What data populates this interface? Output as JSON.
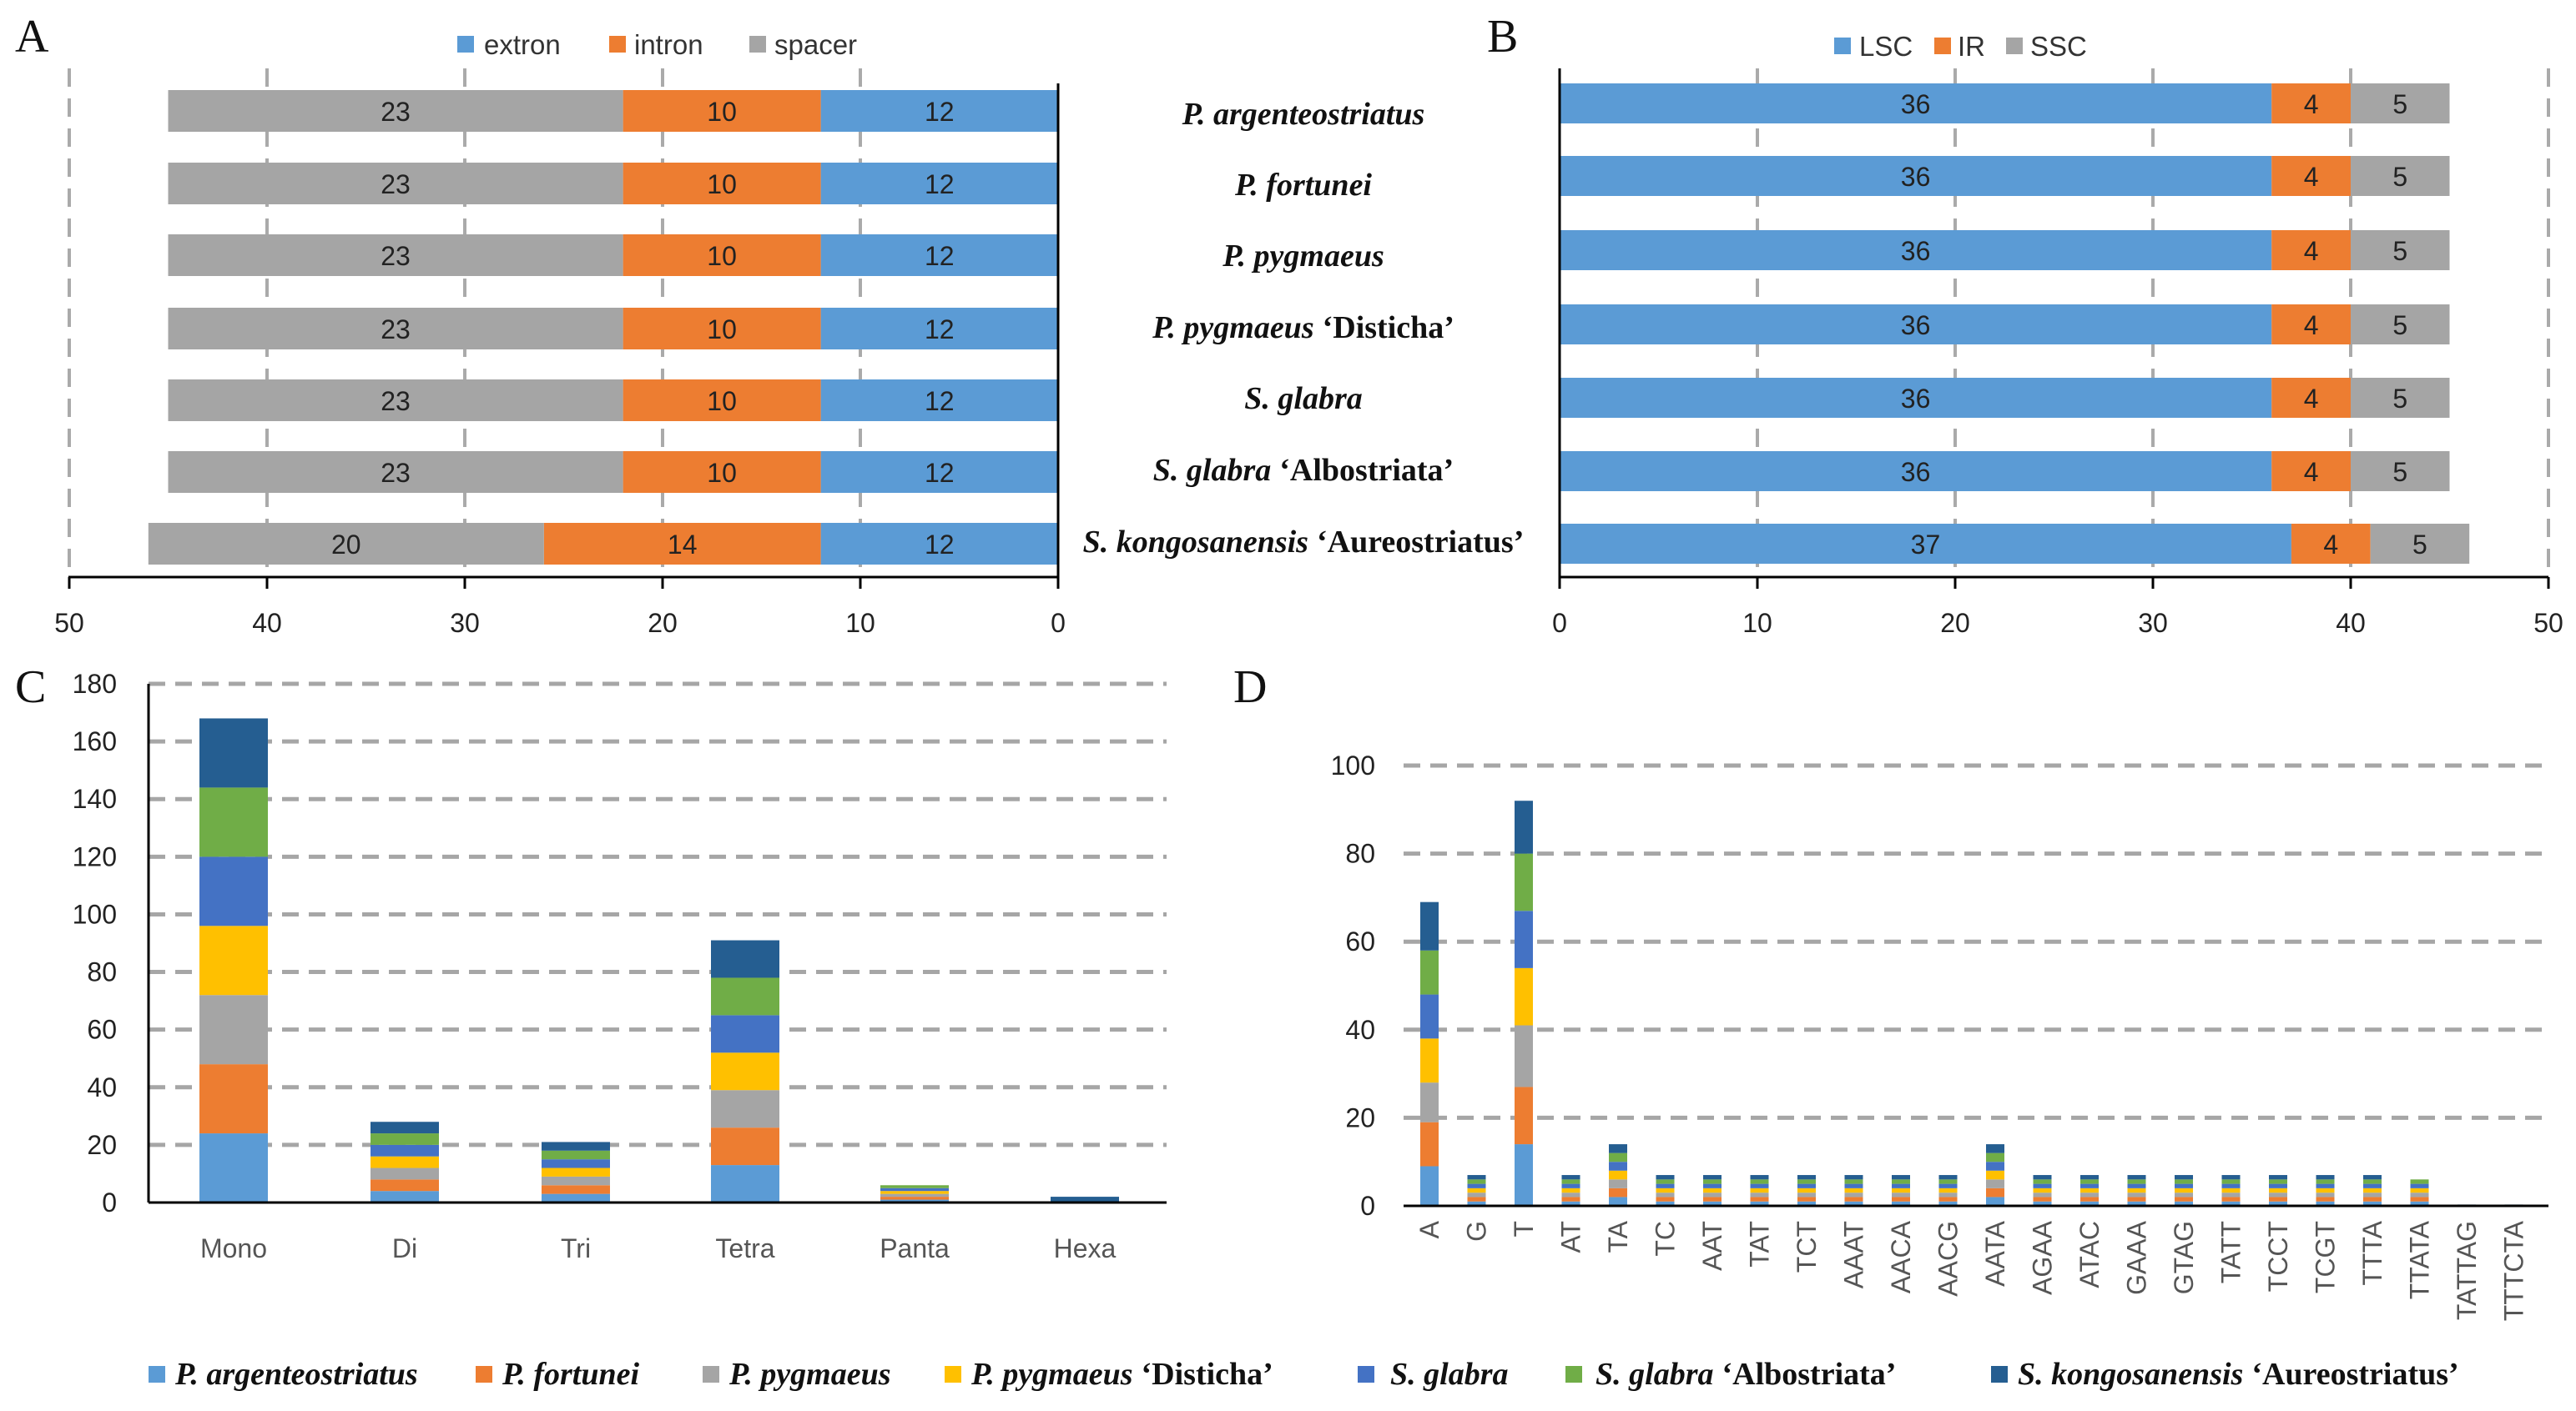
{
  "panels": {
    "a": "A",
    "b": "B",
    "c": "C",
    "d": "D"
  },
  "colors": {
    "extron": "#5B9BD5",
    "intron": "#ED7D31",
    "spacer": "#A5A5A5",
    "LSC": "#5B9BD5",
    "IR": "#ED7D31",
    "SSC": "#A5A5A5",
    "species": [
      "#5B9BD5",
      "#ED7D31",
      "#A5A5A5",
      "#FFC000",
      "#4472C4",
      "#70AD47",
      "#255E91"
    ]
  },
  "species": [
    {
      "italic": "P. argenteostriatus",
      "cultivar": ""
    },
    {
      "italic": "P. fortunei",
      "cultivar": ""
    },
    {
      "italic": "P. pygmaeus",
      "cultivar": ""
    },
    {
      "italic": "P. pygmaeus",
      "cultivar": "‘Disticha’"
    },
    {
      "italic": "S. glabra",
      "cultivar": ""
    },
    {
      "italic": "S. glabra",
      "cultivar": "‘Albostriata’"
    },
    {
      "italic": "S. kongosanensis",
      "cultivar": "‘Aureostriatus’"
    }
  ],
  "chart_data": [
    {
      "id": "A",
      "type": "bar",
      "orientation": "horizontal-reversed",
      "stacked": true,
      "categories": [
        "P. argenteostriatus",
        "P. fortunei",
        "P. pygmaeus",
        "P. pygmaeus ‘Disticha’",
        "S. glabra",
        "S. glabra ‘Albostriata’",
        "S. kongosanensis ‘Aureostriatus’"
      ],
      "series": [
        {
          "name": "extron",
          "values": [
            12,
            12,
            12,
            12,
            12,
            12,
            12
          ]
        },
        {
          "name": "intron",
          "values": [
            10,
            10,
            10,
            10,
            10,
            10,
            14
          ]
        },
        {
          "name": "spacer",
          "values": [
            23,
            23,
            23,
            23,
            23,
            23,
            20
          ]
        }
      ],
      "xlim": [
        0,
        50
      ],
      "ticks": [
        "50",
        "40",
        "30",
        "20",
        "10",
        "0"
      ],
      "legend": "top"
    },
    {
      "id": "B",
      "type": "bar",
      "orientation": "horizontal",
      "stacked": true,
      "categories": [
        "P. argenteostriatus",
        "P. fortunei",
        "P. pygmaeus",
        "P. pygmaeus ‘Disticha’",
        "S. glabra",
        "S. glabra ‘Albostriata’",
        "S. kongosanensis ‘Aureostriatus’"
      ],
      "series": [
        {
          "name": "LSC",
          "values": [
            36,
            36,
            36,
            36,
            36,
            36,
            37
          ]
        },
        {
          "name": "IR",
          "values": [
            4,
            4,
            4,
            4,
            4,
            4,
            4
          ]
        },
        {
          "name": "SSC",
          "values": [
            5,
            5,
            5,
            5,
            5,
            5,
            5
          ]
        }
      ],
      "xlim": [
        0,
        50
      ],
      "ticks": [
        "0",
        "10",
        "20",
        "30",
        "40",
        "50"
      ],
      "legend": "top"
    },
    {
      "id": "C",
      "type": "bar",
      "stacked": true,
      "categories": [
        "Mono",
        "Di",
        "Tri",
        "Tetra",
        "Panta",
        "Hexa"
      ],
      "series": [
        {
          "name": "P. argenteostriatus",
          "values": [
            24,
            4,
            3,
            13,
            1,
            0
          ]
        },
        {
          "name": "P. fortunei",
          "values": [
            24,
            4,
            3,
            13,
            1,
            0
          ]
        },
        {
          "name": "P. pygmaeus",
          "values": [
            24,
            4,
            3,
            13,
            1,
            0
          ]
        },
        {
          "name": "P. pygmaeus ‘Disticha’",
          "values": [
            24,
            4,
            3,
            13,
            1,
            0
          ]
        },
        {
          "name": "S. glabra",
          "values": [
            24,
            4,
            3,
            13,
            1,
            0
          ]
        },
        {
          "name": "S. glabra ‘Albostriata’",
          "values": [
            24,
            4,
            3,
            13,
            1,
            0
          ]
        },
        {
          "name": "S. kongosanensis ‘Aureostriatus’",
          "values": [
            24,
            4,
            3,
            13,
            0,
            2
          ]
        }
      ],
      "ylim": [
        0,
        180
      ],
      "ticks": [
        "0",
        "20",
        "40",
        "60",
        "80",
        "100",
        "120",
        "140",
        "160",
        "180"
      ],
      "grid": true
    },
    {
      "id": "D",
      "type": "bar",
      "stacked": true,
      "categories": [
        "A",
        "G",
        "T",
        "AT",
        "TA",
        "TC",
        "AAT",
        "TAT",
        "TCT",
        "AAAT",
        "AACA",
        "AACG",
        "AATA",
        "AGAA",
        "ATAC",
        "GAAA",
        "GTAG",
        "TATT",
        "TCCT",
        "TCGT",
        "TTTA",
        "TTATA",
        "TATTAG",
        "TTTCTA"
      ],
      "series": [
        {
          "name": "P. argenteostriatus",
          "values": [
            9,
            1,
            14,
            1,
            2,
            1,
            1,
            1,
            1,
            1,
            1,
            1,
            2,
            1,
            1,
            1,
            1,
            1,
            1,
            1,
            1,
            1,
            0,
            0
          ]
        },
        {
          "name": "P. fortunei",
          "values": [
            10,
            1,
            13,
            1,
            2,
            1,
            1,
            1,
            1,
            1,
            1,
            1,
            2,
            1,
            1,
            1,
            1,
            1,
            1,
            1,
            1,
            1,
            0,
            0
          ]
        },
        {
          "name": "P. pygmaeus",
          "values": [
            9,
            1,
            14,
            1,
            2,
            1,
            1,
            1,
            1,
            1,
            1,
            1,
            2,
            1,
            1,
            1,
            1,
            1,
            1,
            1,
            1,
            1,
            0,
            0
          ]
        },
        {
          "name": "P. pygmaeus ‘Disticha’",
          "values": [
            10,
            1,
            13,
            1,
            2,
            1,
            1,
            1,
            1,
            1,
            1,
            1,
            2,
            1,
            1,
            1,
            1,
            1,
            1,
            1,
            1,
            1,
            0,
            0
          ]
        },
        {
          "name": "S. glabra",
          "values": [
            10,
            1,
            13,
            1,
            2,
            1,
            1,
            1,
            1,
            1,
            1,
            1,
            2,
            1,
            1,
            1,
            1,
            1,
            1,
            1,
            1,
            1,
            0,
            0
          ]
        },
        {
          "name": "S. glabra ‘Albostriata’",
          "values": [
            10,
            1,
            13,
            1,
            2,
            1,
            1,
            1,
            1,
            1,
            1,
            1,
            2,
            1,
            1,
            1,
            1,
            1,
            1,
            1,
            1,
            1,
            0,
            0
          ]
        },
        {
          "name": "S. kongosanensis ‘Aureostriatus’",
          "values": [
            11,
            1,
            12,
            1,
            2,
            1,
            1,
            1,
            1,
            1,
            1,
            1,
            2,
            1,
            1,
            1,
            1,
            1,
            1,
            1,
            1,
            0,
            0.3,
            0.3
          ]
        }
      ],
      "ylim": [
        0,
        100
      ],
      "ticks": [
        "0",
        "20",
        "40",
        "60",
        "80",
        "100"
      ],
      "grid": true
    }
  ]
}
